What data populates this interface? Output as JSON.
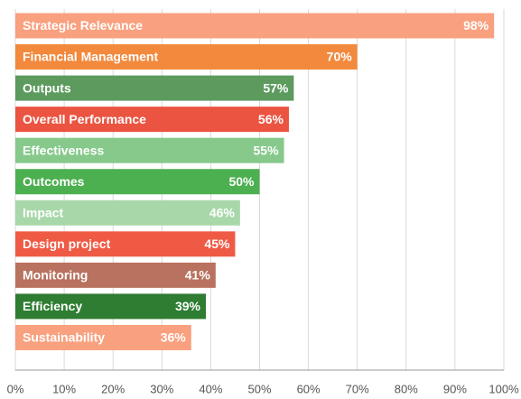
{
  "chart_data": {
    "type": "hbar",
    "categories": [
      "Strategic Relevance",
      "Financial Management",
      "Outputs",
      "Overall Performance",
      "Effectiveness",
      "Outcomes",
      "Impact",
      "Design project",
      "Monitoring",
      "Efficiency",
      "Sustainability"
    ],
    "values": [
      98,
      70,
      57,
      56,
      55,
      50,
      46,
      45,
      41,
      39,
      36
    ],
    "value_labels": [
      "98%",
      "70%",
      "57%",
      "56%",
      "55%",
      "50%",
      "46%",
      "45%",
      "41%",
      "39%",
      "36%"
    ],
    "colors": [
      "#f9a07f",
      "#f2893d",
      "#5c9a5e",
      "#ea5440",
      "#86c98b",
      "#4caf50",
      "#a8d8aa",
      "#ef5a45",
      "#b9725f",
      "#2e7d32",
      "#f9a07f"
    ],
    "xlim": [
      0,
      100
    ],
    "xticks": [
      {
        "value": 0,
        "label": "0%"
      },
      {
        "value": 10,
        "label": "10%"
      },
      {
        "value": 20,
        "label": "20%"
      },
      {
        "value": 30,
        "label": "30%"
      },
      {
        "value": 40,
        "label": "40%"
      },
      {
        "value": 50,
        "label": "50%"
      },
      {
        "value": 60,
        "label": "60%"
      },
      {
        "value": 70,
        "label": "70%"
      },
      {
        "value": 80,
        "label": "80%"
      },
      {
        "value": 90,
        "label": "90%"
      },
      {
        "value": 100,
        "label": "100%"
      }
    ],
    "grid": true
  }
}
